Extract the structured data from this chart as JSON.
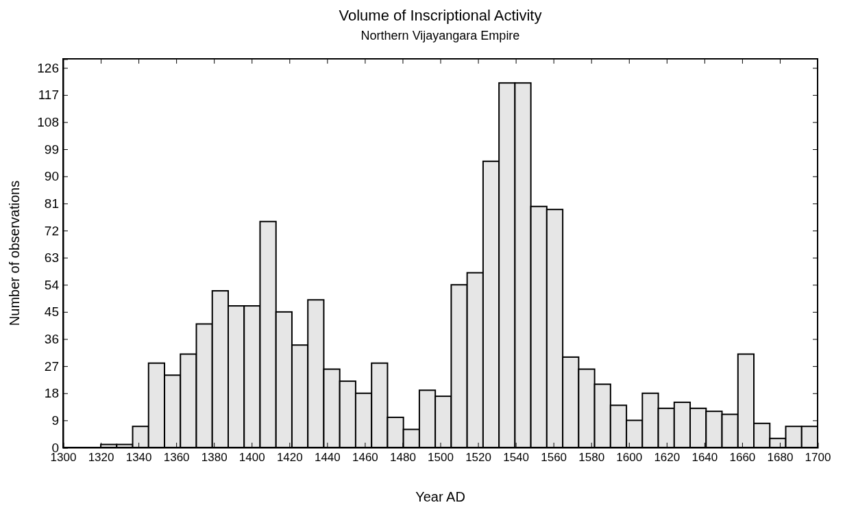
{
  "chart_data": {
    "type": "histogram",
    "title": "Volume of Inscriptional Activity",
    "subtitle": "Northern Vijayangara Empire",
    "xlabel": "Year AD",
    "ylabel": "Number of observations",
    "bins": [
      1320,
      1328.44,
      1336.89,
      1345.33,
      1353.78,
      1362.22,
      1370.67,
      1379.11,
      1387.56,
      1396,
      1404.44,
      1412.89,
      1421.33,
      1429.78,
      1438.22,
      1446.67,
      1455.11,
      1463.56,
      1472,
      1480.44,
      1488.89,
      1497.33,
      1505.78,
      1514.22,
      1522.67,
      1531.11,
      1539.56,
      1548,
      1556.44,
      1564.89,
      1573.33,
      1581.78,
      1590.22,
      1598.67,
      1607.11,
      1615.56,
      1624,
      1632.44,
      1640.89,
      1649.33,
      1657.78,
      1666.22,
      1674.67,
      1683.11,
      1691.56,
      1700
    ],
    "values": [
      1,
      1,
      7,
      28,
      24,
      31,
      41,
      52,
      47,
      47,
      75,
      45,
      34,
      49,
      26,
      22,
      18,
      28,
      10,
      6,
      19,
      17,
      54,
      58,
      95,
      121,
      121,
      80,
      79,
      30,
      26,
      21,
      14,
      9,
      18,
      13,
      15,
      13,
      12,
      11,
      31,
      8,
      3,
      7,
      7
    ],
    "color": "#e6e6e6",
    "xlim": [
      1300,
      1700
    ],
    "xticks": [
      1300,
      1320,
      1340,
      1360,
      1380,
      1400,
      1420,
      1440,
      1460,
      1480,
      1500,
      1520,
      1540,
      1560,
      1580,
      1600,
      1620,
      1640,
      1660,
      1680,
      1700
    ],
    "ylim": [
      0,
      129
    ],
    "yticks": [
      0,
      9,
      18,
      27,
      36,
      45,
      54,
      63,
      72,
      81,
      90,
      99,
      108,
      117,
      126
    ],
    "grid": false
  }
}
